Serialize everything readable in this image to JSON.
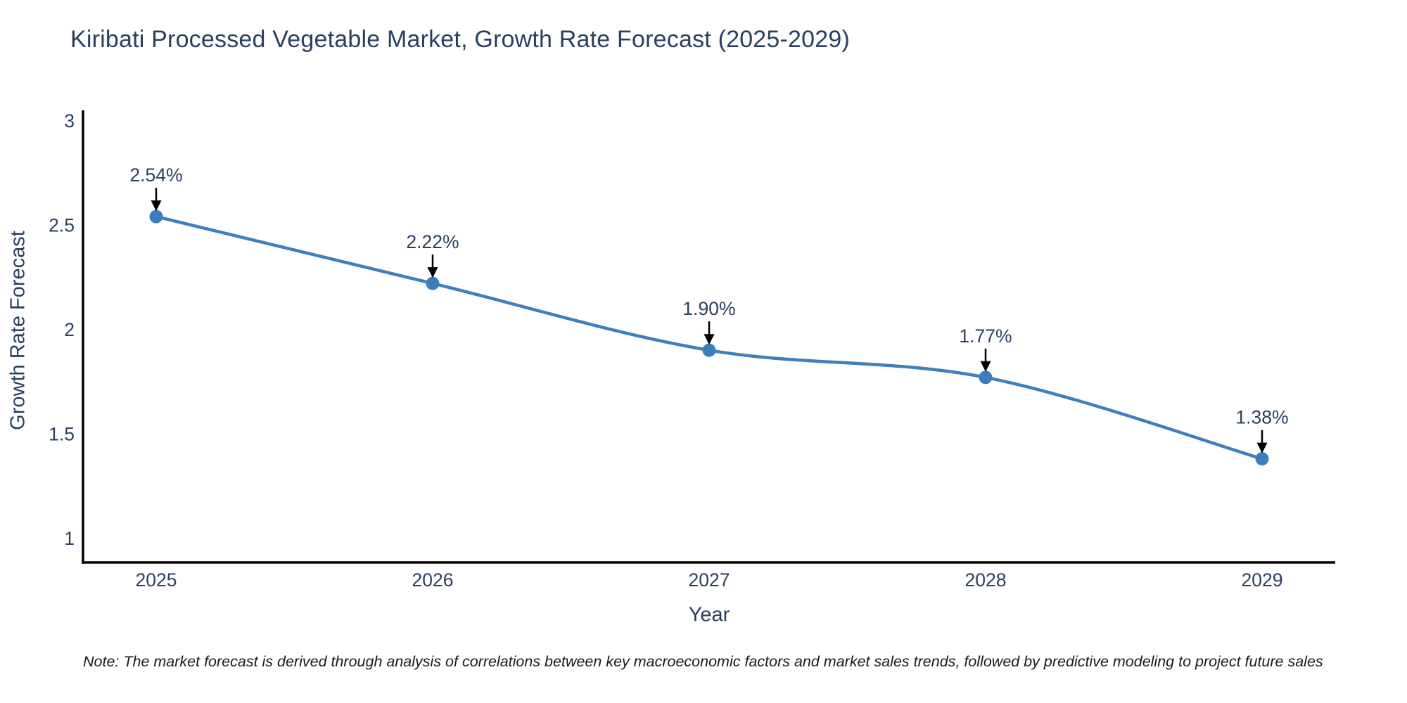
{
  "title": "Kiribati Processed Vegetable Market, Growth Rate Forecast (2025-2029)",
  "footnote": "Note: The market forecast is derived through analysis of correlations between key macroeconomic factors and market sales trends, followed by predictive modeling to project future sales",
  "chart_data": {
    "type": "line",
    "title": "Kiribati Processed Vegetable Market, Growth Rate Forecast (2025-2029)",
    "xlabel": "Year",
    "ylabel": "Growth Rate Forecast",
    "x": [
      2025,
      2026,
      2027,
      2028,
      2029
    ],
    "x_tick_labels": [
      "2025",
      "2026",
      "2027",
      "2028",
      "2029"
    ],
    "series": [
      {
        "name": "Growth Rate Forecast",
        "values": [
          2.54,
          2.22,
          1.9,
          1.77,
          1.38
        ],
        "point_labels": [
          "2.54%",
          "2.22%",
          "1.90%",
          "1.77%",
          "1.38%"
        ]
      }
    ],
    "y_ticks": [
      1,
      1.5,
      2,
      2.5,
      3
    ],
    "y_tick_labels": [
      "1",
      "1.5",
      "2",
      "2.5",
      "3"
    ],
    "ylim": [
      0.88,
      3.06
    ],
    "grid": false,
    "line_shape": "spline",
    "legend": "none",
    "colors": {
      "line": "#3f7fbc",
      "marker": "#3c7ebc",
      "axis": "#000000",
      "text": "#2a3f5f",
      "annotation_arrow": "#000000",
      "note_text": "#1a1a1a",
      "background": "#ffffff"
    }
  }
}
